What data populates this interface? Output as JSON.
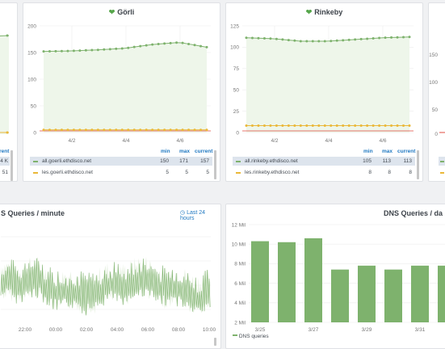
{
  "colors": {
    "green": "#7eb26d",
    "yellow": "#eab839",
    "red": "#e24d42",
    "blue": "#1f78c1",
    "fill": "#eef6ea"
  },
  "left_edge": {
    "legend_current_head": "current",
    "row1_value": "4 K",
    "row2_value": "51"
  },
  "goerli": {
    "title": "Görli",
    "y_ticks": [
      "200",
      "150",
      "100",
      "50",
      "0"
    ],
    "x_ticks": [
      "4/2",
      "4/4",
      "4/6"
    ],
    "legend_heads": {
      "min": "min",
      "max": "max",
      "current": "current"
    },
    "series": [
      {
        "name": "all.goerli.ethdisco.net",
        "min": "150",
        "max": "171",
        "current": "157"
      },
      {
        "name": "les.goerli.ethdisco.net",
        "min": "5",
        "max": "5",
        "current": "5"
      }
    ]
  },
  "rinkeby": {
    "title": "Rinkeby",
    "y_ticks": [
      "125",
      "100",
      "75",
      "50",
      "25",
      "0"
    ],
    "x_ticks": [
      "4/2",
      "4/4",
      "4/6"
    ],
    "legend_heads": {
      "min": "min",
      "max": "max",
      "current": "current"
    },
    "series": [
      {
        "name": "all.rinkeby.ethdisco.net",
        "min": "105",
        "max": "113",
        "current": "113"
      },
      {
        "name": "les.rinkeby.ethdisco.net",
        "min": "8",
        "max": "8",
        "current": "8"
      }
    ]
  },
  "right_edge": {
    "y_ticks": [
      "150",
      "100",
      "50",
      "0"
    ]
  },
  "dns_minute": {
    "title": "S Queries / minute",
    "range_label": "Last 24 hours",
    "x_ticks": [
      "22:00",
      "00:00",
      "02:00",
      "04:00",
      "06:00",
      "08:00",
      "10:00"
    ]
  },
  "dns_day": {
    "title": "DNS Queries / da",
    "y_ticks": [
      "12 Mil",
      "10 Mil",
      "8 Mil",
      "6 Mil",
      "4 Mil",
      "2 Mil"
    ],
    "x_ticks": [
      "3/25",
      "3/27",
      "3/29",
      "3/31"
    ],
    "legend": "DNS queries"
  },
  "chart_data": [
    {
      "type": "line",
      "title": "Görli",
      "x": [
        "4/1",
        "4/2",
        "4/3",
        "4/4",
        "4/5",
        "4/6",
        "4/7"
      ],
      "series": [
        {
          "name": "all.goerli.ethdisco.net",
          "values": [
            152,
            153,
            155,
            158,
            165,
            169,
            160
          ]
        },
        {
          "name": "les.goerli.ethdisco.net",
          "values": [
            5,
            5,
            5,
            5,
            5,
            5,
            5
          ]
        }
      ],
      "ylim": [
        0,
        200
      ]
    },
    {
      "type": "line",
      "title": "Rinkeby",
      "x": [
        "4/1",
        "4/2",
        "4/3",
        "4/4",
        "4/5",
        "4/6",
        "4/7"
      ],
      "series": [
        {
          "name": "all.rinkeby.ethdisco.net",
          "values": [
            111,
            110,
            107,
            107,
            109,
            111,
            112
          ]
        },
        {
          "name": "les.rinkeby.ethdisco.net",
          "values": [
            8,
            8,
            8,
            8,
            8,
            8,
            8
          ]
        }
      ],
      "ylim": [
        0,
        125
      ]
    },
    {
      "type": "bar",
      "title": "DNS Queries / da",
      "categories": [
        "3/25",
        "3/26",
        "3/27",
        "3/28",
        "3/29",
        "3/30",
        "3/31",
        "4/1"
      ],
      "series": [
        {
          "name": "DNS queries",
          "values": [
            10.3,
            10.2,
            10.6,
            7.4,
            7.8,
            7.4,
            7.8,
            7.8
          ]
        }
      ],
      "ylim": [
        2,
        12
      ]
    }
  ]
}
